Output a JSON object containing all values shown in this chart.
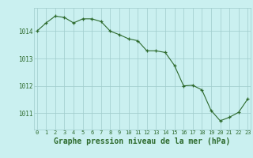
{
  "x": [
    0,
    1,
    2,
    3,
    4,
    5,
    6,
    7,
    8,
    9,
    10,
    11,
    12,
    13,
    14,
    15,
    16,
    17,
    18,
    19,
    20,
    21,
    22,
    23
  ],
  "y": [
    1014.0,
    1014.3,
    1014.55,
    1014.5,
    1014.3,
    1014.45,
    1014.45,
    1014.35,
    1014.0,
    1013.87,
    1013.72,
    1013.65,
    1013.28,
    1013.28,
    1013.22,
    1012.75,
    1012.0,
    1012.02,
    1011.85,
    1011.1,
    1010.72,
    1010.85,
    1011.03,
    1011.52
  ],
  "line_color": "#2d6a2d",
  "marker": "+",
  "bg_color": "#caf0f0",
  "grid_color": "#a0cccc",
  "xlabel": "Graphe pression niveau de la mer (hPa)",
  "xlabel_fontsize": 7,
  "tick_color": "#2d6a2d",
  "ylim": [
    1010.4,
    1014.85
  ],
  "xlim": [
    -0.3,
    23.3
  ],
  "yticks": [
    1011,
    1012,
    1013,
    1014
  ],
  "xticks": [
    0,
    1,
    2,
    3,
    4,
    5,
    6,
    7,
    8,
    9,
    10,
    11,
    12,
    13,
    14,
    15,
    16,
    17,
    18,
    19,
    20,
    21,
    22,
    23
  ]
}
